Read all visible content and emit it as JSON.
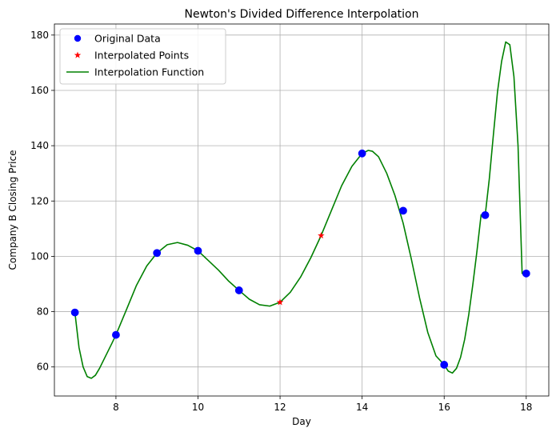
{
  "chart_data": {
    "type": "line",
    "title": "Newton's Divided Difference Interpolation",
    "xlabel": "Day",
    "ylabel": "Company B Closing Price",
    "xlim": [
      6.5,
      18.55
    ],
    "ylim": [
      49.5,
      184
    ],
    "xticks": [
      8,
      10,
      12,
      14,
      16,
      18
    ],
    "yticks": [
      60,
      80,
      100,
      120,
      140,
      160,
      180
    ],
    "grid": true,
    "legend_position": "top-left",
    "series": [
      {
        "name": "Original Data",
        "style": "markers",
        "marker": "circle",
        "color": "#0000ff",
        "x": [
          7,
          8,
          9,
          10,
          11,
          14,
          15,
          16,
          17,
          18
        ],
        "y": [
          79.7,
          71.6,
          101.2,
          102.0,
          87.7,
          137.2,
          116.5,
          60.8,
          114.9,
          93.8
        ]
      },
      {
        "name": "Interpolated Points",
        "style": "markers",
        "marker": "star",
        "color": "#ff0000",
        "x": [
          12,
          13
        ],
        "y": [
          83.4,
          107.5
        ]
      },
      {
        "name": "Interpolation Function",
        "style": "line",
        "color": "#008000",
        "x": [
          7.0,
          7.1,
          7.2,
          7.3,
          7.4,
          7.5,
          7.6,
          7.7,
          7.8,
          7.9,
          8.0,
          8.25,
          8.5,
          8.75,
          9.0,
          9.25,
          9.5,
          9.75,
          10.0,
          10.25,
          10.5,
          10.75,
          11.0,
          11.25,
          11.5,
          11.75,
          12.0,
          12.25,
          12.5,
          12.75,
          13.0,
          13.25,
          13.5,
          13.75,
          14.0,
          14.15,
          14.25,
          14.4,
          14.6,
          14.8,
          15.0,
          15.2,
          15.4,
          15.6,
          15.8,
          16.0,
          16.1,
          16.2,
          16.3,
          16.4,
          16.5,
          16.6,
          16.7,
          16.8,
          16.9,
          17.0,
          17.1,
          17.2,
          17.3,
          17.4,
          17.5,
          17.6,
          17.7,
          17.8,
          17.9,
          18.0
        ],
        "y": [
          79.7,
          67.0,
          60.0,
          56.5,
          55.9,
          57.0,
          59.5,
          62.5,
          65.5,
          68.5,
          71.6,
          80.5,
          89.5,
          96.5,
          101.2,
          104.2,
          105.0,
          104.0,
          102.0,
          98.5,
          95.0,
          91.0,
          87.7,
          84.5,
          82.5,
          82.0,
          83.4,
          87.0,
          92.5,
          99.5,
          107.5,
          116.5,
          125.5,
          132.5,
          137.2,
          138.3,
          138.0,
          136.0,
          130.0,
          122.0,
          112.0,
          99.0,
          85.0,
          72.5,
          64.0,
          60.8,
          58.5,
          57.8,
          59.5,
          63.5,
          70.0,
          79.0,
          90.0,
          102.0,
          115.0,
          114.9,
          128.0,
          144.0,
          159.5,
          170.5,
          177.5,
          176.5,
          165.0,
          140.0,
          93.8,
          93.8
        ]
      }
    ]
  }
}
